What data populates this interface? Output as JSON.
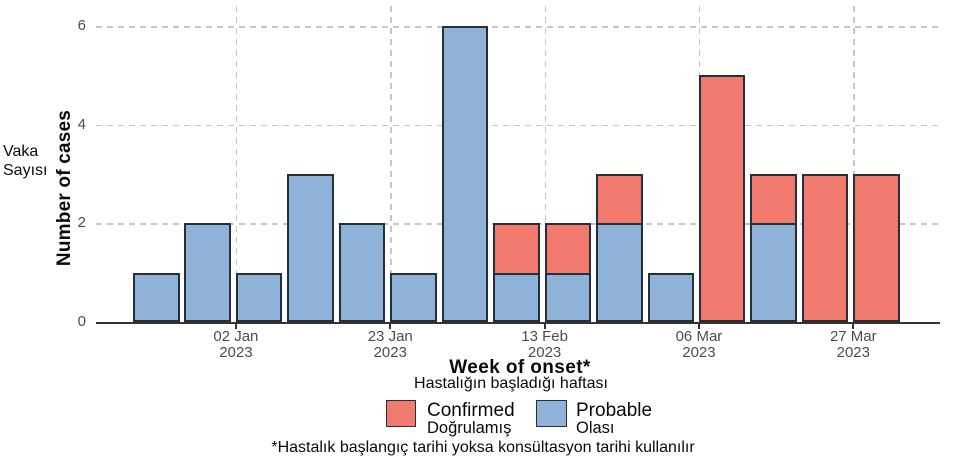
{
  "y_axis": {
    "label": "Number of cases",
    "label_tr_line1": "Vaka",
    "label_tr_line2": "Sayısı"
  },
  "x_axis": {
    "title": "Week of onset*",
    "subtitle_tr": "Hastalığın başladığı haftası"
  },
  "legend": {
    "items": [
      {
        "label": "Confirmed",
        "label_tr": "Doğrulamış",
        "color": "#F1796D"
      },
      {
        "label": "Probable",
        "label_tr": "Olası",
        "color": "#8FB2D9"
      }
    ]
  },
  "footnote": "*Hastalık başlangıç tarihi yoksa konsültasyon tarihi kullanılır",
  "chart_data": {
    "type": "bar",
    "stacked": true,
    "title": "",
    "xlabel": "Week of onset*",
    "ylabel": "Number of cases",
    "n_bars": 15,
    "series": [
      {
        "name": "Probable",
        "color": "#8FB2D9",
        "values": [
          1,
          2,
          1,
          3,
          2,
          1,
          6,
          1,
          1,
          2,
          1,
          0,
          2,
          0,
          0
        ]
      },
      {
        "name": "Confirmed",
        "color": "#F1796D",
        "values": [
          0,
          0,
          0,
          0,
          0,
          0,
          0,
          1,
          1,
          1,
          0,
          5,
          1,
          3,
          3
        ]
      }
    ],
    "totals": [
      1,
      2,
      1,
      3,
      2,
      1,
      6,
      2,
      2,
      3,
      1,
      5,
      3,
      3,
      3
    ],
    "x_ticks": [
      {
        "bar_index": 2,
        "line1": "02 Jan",
        "line2": "2023"
      },
      {
        "bar_index": 5,
        "line1": "23 Jan",
        "line2": "2023"
      },
      {
        "bar_index": 8,
        "line1": "13 Feb",
        "line2": "2023"
      },
      {
        "bar_index": 11,
        "line1": "06 Mar",
        "line2": "2023"
      },
      {
        "bar_index": 14,
        "line1": "27 Mar",
        "line2": "2023"
      }
    ],
    "yticks": [
      0,
      2,
      4,
      6
    ],
    "ylim": [
      0,
      6
    ],
    "grid": "dashed",
    "bar_outline": "#252f3a",
    "legend_position": "bottom"
  }
}
